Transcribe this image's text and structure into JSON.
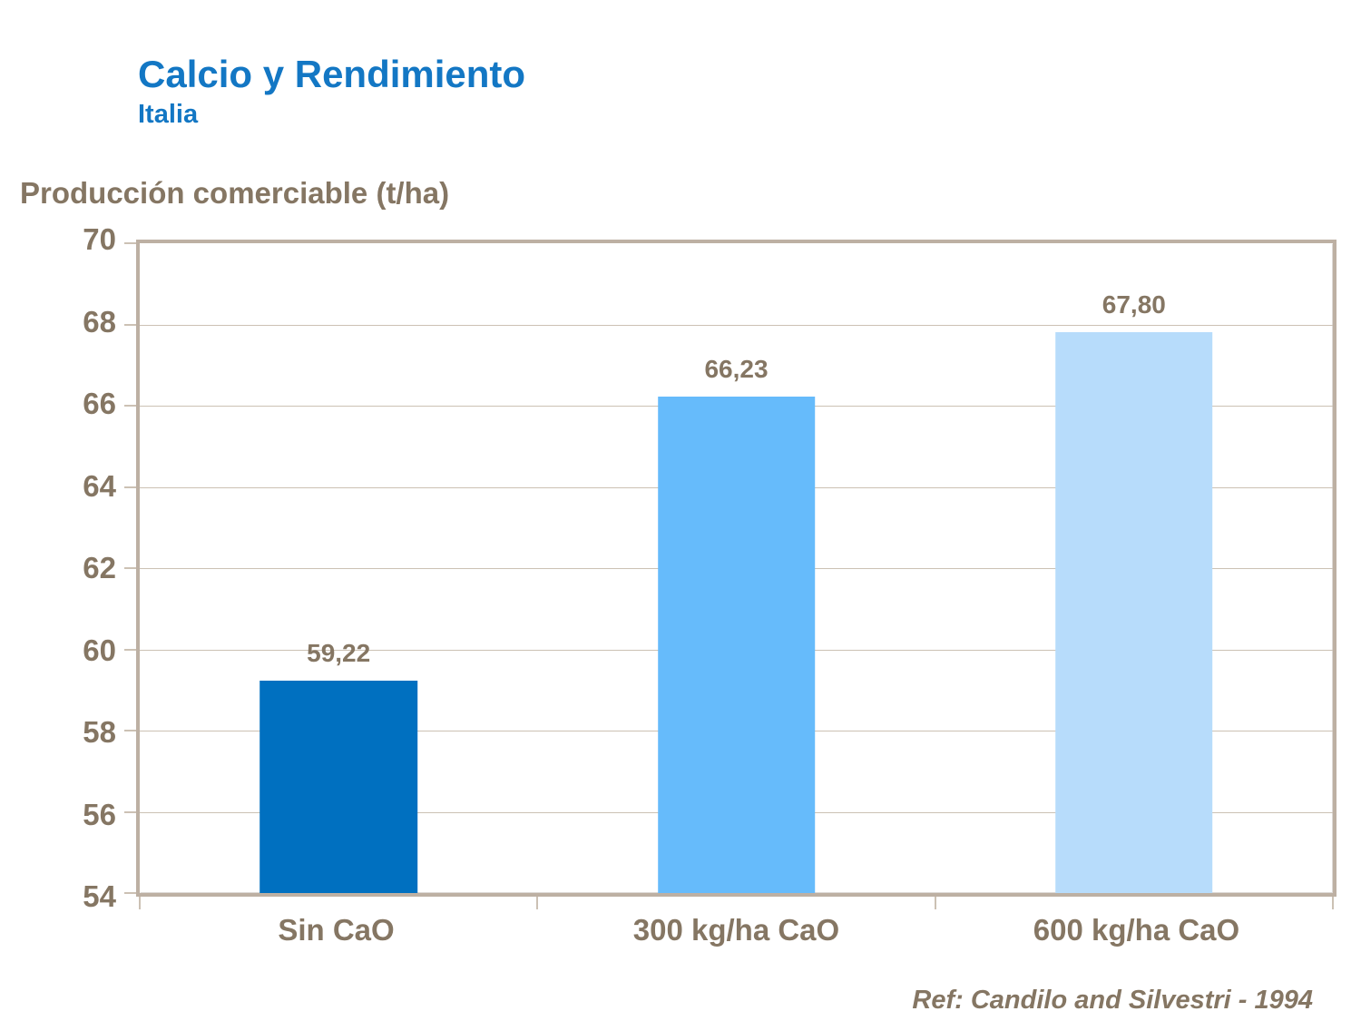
{
  "header": {
    "title": "Calcio y Rendimiento",
    "subtitle": "Italia"
  },
  "footer": {
    "reference": "Ref: Candilo and Silvestri - 1994"
  },
  "colors": {
    "accent_blue": "#1377C4",
    "text_taupe": "#857663",
    "frame_tan": "#BDB0A3",
    "gridline_tan": "#CCC1B4",
    "bar_dark_blue": "#0070C0",
    "bar_medium_blue": "#66BBFB",
    "bar_light_blue": "#B7DCFB"
  },
  "chart_data": {
    "type": "bar",
    "title": "Calcio y Rendimiento",
    "subtitle": "Italia",
    "ylabel": "Producción comerciable (t/ha)",
    "xlabel": "",
    "categories": [
      "Sin CaO",
      "300 kg/ha CaO",
      "600 kg/ha CaO"
    ],
    "values": [
      59.22,
      66.23,
      67.8
    ],
    "value_labels": [
      "59,22",
      "66,23",
      "67,80"
    ],
    "bar_colors": [
      "#0070C0",
      "#66BBFB",
      "#B7DCFB"
    ],
    "ylim": [
      54,
      70
    ],
    "ytick_step": 2,
    "ytick_labels": [
      "54",
      "56",
      "58",
      "60",
      "62",
      "64",
      "66",
      "68",
      "70"
    ],
    "grid": true,
    "legend": false,
    "annotation": "Ref: Candilo and Silvestri - 1994"
  }
}
